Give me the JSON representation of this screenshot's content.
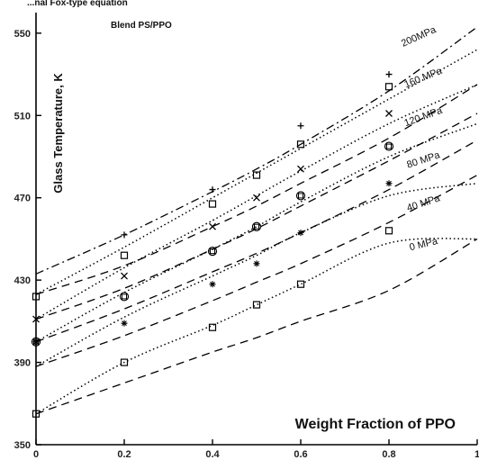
{
  "chart_data": {
    "type": "line",
    "title_partial": "...nal Fox-type equation",
    "subtitle": "Blend PS/PPO",
    "xlabel": "Weight Fraction of PPO",
    "ylabel": "Glass Temperature, K",
    "xlim": [
      0,
      1
    ],
    "ylim": [
      350,
      560
    ],
    "x_ticks": [
      0,
      0.2,
      0.4,
      0.6,
      0.8,
      1
    ],
    "x_tick_labels": [
      "0",
      "0.2",
      "0.4",
      "0.6",
      "0.8",
      "1"
    ],
    "y_ticks": [
      350,
      390,
      430,
      470,
      510,
      550
    ],
    "y_tick_labels": [
      "350",
      "390",
      "430",
      "470",
      "510",
      "550"
    ],
    "series": [
      {
        "name": "0 MPa",
        "pressure_label": "0 MPa",
        "x": [
          0,
          0.2,
          0.4,
          0.5,
          0.6,
          0.8,
          1.0
        ],
        "dashed": [
          365,
          380,
          395,
          402,
          410,
          425,
          450
        ],
        "dotted": [
          365,
          390,
          408,
          418,
          428,
          448,
          450
        ],
        "markers": {
          "symbol": "square",
          "x": [
            0,
            0.2,
            0.4,
            0.5,
            0.6,
            0.8
          ],
          "y": [
            365,
            390,
            407,
            418,
            428,
            454
          ]
        }
      },
      {
        "name": "40 MPa",
        "pressure_label": "40 MPa",
        "x": [
          0,
          0.2,
          0.4,
          0.5,
          0.6,
          0.8,
          1.0
        ],
        "dashed": [
          388,
          403,
          420,
          429,
          438,
          458,
          481
        ],
        "dotted": [
          388,
          412,
          432,
          442,
          453,
          471,
          477
        ],
        "markers": {
          "symbol": "star",
          "x": [
            0,
            0.2,
            0.4,
            0.5,
            0.6,
            0.8
          ],
          "y": [
            400,
            409,
            428,
            438,
            453,
            477
          ]
        }
      },
      {
        "name": "80 MPa",
        "pressure_label": "80 MPa",
        "x": [
          0,
          0.2,
          0.4,
          0.5,
          0.6,
          0.8,
          1.0
        ],
        "dashed": [
          400,
          416,
          434,
          443,
          453,
          474,
          498
        ],
        "dotted": [
          400,
          424,
          445,
          456,
          468,
          490,
          506
        ],
        "markers": {
          "symbol": "circle-square",
          "x": [
            0,
            0.2,
            0.4,
            0.5,
            0.6,
            0.8
          ],
          "y": [
            400,
            422,
            444,
            456,
            471,
            495
          ]
        }
      },
      {
        "name": "120 MPa",
        "pressure_label": "120 MPa",
        "x": [
          0,
          0.2,
          0.4,
          0.5,
          0.6,
          0.8,
          1.0
        ],
        "dashed": [
          411,
          426,
          445,
          455,
          466,
          488,
          511
        ],
        "dotted": [
          411,
          436,
          459,
          471,
          483,
          506,
          525
        ],
        "markers": {
          "symbol": "x",
          "x": [
            0,
            0.2,
            0.4,
            0.5,
            0.6,
            0.8
          ],
          "y": [
            411,
            432,
            456,
            470,
            484,
            511
          ]
        }
      },
      {
        "name": "160 MPa",
        "pressure_label": "160 MPa",
        "x": [
          0,
          0.2,
          0.4,
          0.5,
          0.6,
          0.8,
          1.0
        ],
        "dashed": [
          423,
          437,
          456,
          466,
          477,
          499,
          525
        ],
        "dotted": [
          423,
          446,
          470,
          482,
          494,
          518,
          542
        ],
        "markers": {
          "symbol": "square",
          "x": [
            0,
            0.2,
            0.4,
            0.5,
            0.6,
            0.8
          ],
          "y": [
            422,
            442,
            467,
            481,
            496,
            524
          ]
        }
      },
      {
        "name": "200 MPa",
        "pressure_label": "200MPa",
        "x": [
          0,
          0.2,
          0.4,
          0.5,
          0.6,
          0.8,
          1.0
        ],
        "dashdot": [
          433,
          452,
          473,
          484,
          496,
          522,
          553
        ],
        "markers": {
          "symbol": "plus",
          "x": [
            0.2,
            0.4,
            0.6,
            0.8
          ],
          "y": [
            452,
            474,
            505,
            530
          ]
        }
      }
    ],
    "grid": false,
    "legend": "inline labels near right end of curves"
  }
}
